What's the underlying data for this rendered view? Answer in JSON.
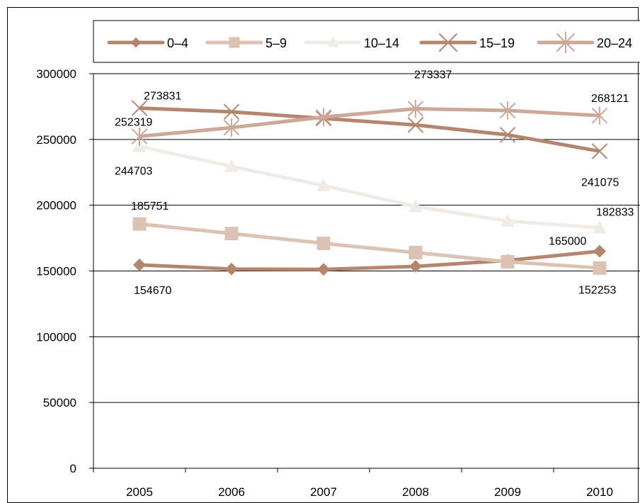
{
  "chart_data": {
    "type": "line",
    "title": "",
    "xlabel": "",
    "ylabel": "",
    "categories": [
      "2005",
      "2006",
      "2007",
      "2008",
      "2009",
      "2010"
    ],
    "ylim": [
      0,
      300000
    ],
    "yticks": [
      "0",
      "50000",
      "100000",
      "150000",
      "200000",
      "250000",
      "300000"
    ],
    "grid": "horizontal",
    "legend_position": "top",
    "series": [
      {
        "name": "0–4",
        "values": [
          154670,
          151500,
          151200,
          153500,
          158000,
          165000
        ],
        "color": "#b5866e",
        "marker": "diamond"
      },
      {
        "name": "5–9",
        "values": [
          185751,
          178500,
          171000,
          164000,
          157000,
          152253
        ],
        "color": "#dcc2b2",
        "marker": "square"
      },
      {
        "name": "10–14",
        "values": [
          244703,
          229500,
          215000,
          199000,
          188000,
          182833
        ],
        "color": "#f1ebe6",
        "marker": "triangle"
      },
      {
        "name": "15–19",
        "values": [
          273831,
          271000,
          266000,
          261000,
          253500,
          241075
        ],
        "color": "#b5866e",
        "marker": "x"
      },
      {
        "name": "20–24",
        "values": [
          252319,
          259000,
          267000,
          273337,
          272000,
          268121
        ],
        "color": "#cca898",
        "marker": "star"
      }
    ],
    "annotations": [
      {
        "text": "273831",
        "series": 3,
        "index": 0
      },
      {
        "text": "252319",
        "series": 4,
        "index": 0
      },
      {
        "text": "244703",
        "series": 2,
        "index": 0
      },
      {
        "text": "185751",
        "series": 1,
        "index": 0
      },
      {
        "text": "154670",
        "series": 0,
        "index": 0
      },
      {
        "text": "273337",
        "series": 4,
        "index": 3
      },
      {
        "text": "268121",
        "series": 4,
        "index": 5
      },
      {
        "text": "241075",
        "series": 3,
        "index": 5
      },
      {
        "text": "182833",
        "series": 2,
        "index": 5
      },
      {
        "text": "165000",
        "series": 0,
        "index": 5
      },
      {
        "text": "152253",
        "series": 1,
        "index": 5
      }
    ]
  }
}
